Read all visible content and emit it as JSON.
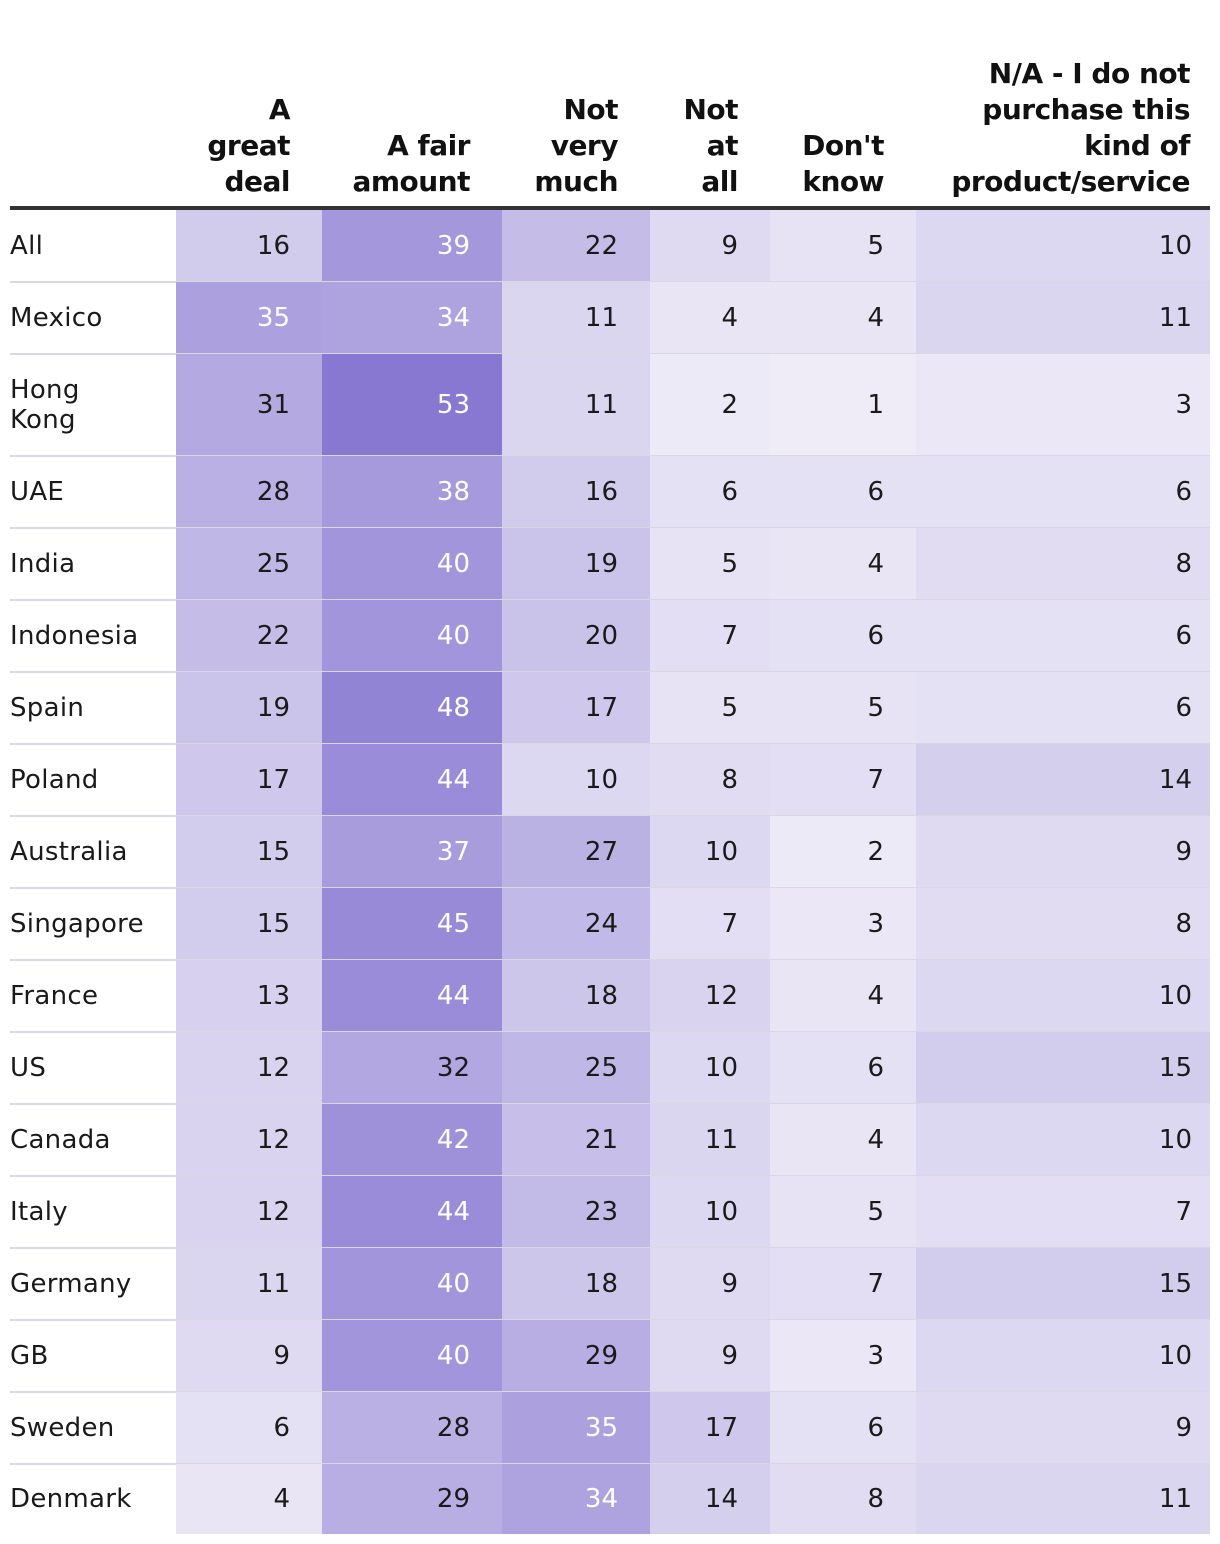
{
  "chart_data": {
    "type": "heatmap",
    "columns": [
      "A great deal",
      "A fair amount",
      "Not very much",
      "Not at all",
      "Don't know",
      "N/A - I do not purchase this kind of product/service"
    ],
    "column_header_lines": [
      [
        "A",
        "great",
        "deal"
      ],
      [
        "A fair",
        "amount"
      ],
      [
        "Not",
        "very",
        "much"
      ],
      [
        "Not",
        "at",
        "all"
      ],
      [
        "Don't",
        "know"
      ],
      [
        "N/A - I do not",
        "purchase this",
        "kind of",
        "product/service"
      ]
    ],
    "rows": [
      {
        "label": "All",
        "values": [
          16,
          39,
          22,
          9,
          5,
          10
        ]
      },
      {
        "label": "Mexico",
        "values": [
          35,
          34,
          11,
          4,
          4,
          11
        ]
      },
      {
        "label": "Hong Kong",
        "values": [
          31,
          53,
          11,
          2,
          1,
          3
        ]
      },
      {
        "label": "UAE",
        "values": [
          28,
          38,
          16,
          6,
          6,
          6
        ]
      },
      {
        "label": "India",
        "values": [
          25,
          40,
          19,
          5,
          4,
          8
        ]
      },
      {
        "label": "Indonesia",
        "values": [
          22,
          40,
          20,
          7,
          6,
          6
        ]
      },
      {
        "label": "Spain",
        "values": [
          19,
          48,
          17,
          5,
          5,
          6
        ]
      },
      {
        "label": "Poland",
        "values": [
          17,
          44,
          10,
          8,
          7,
          14
        ]
      },
      {
        "label": "Australia",
        "values": [
          15,
          37,
          27,
          10,
          2,
          9
        ]
      },
      {
        "label": "Singapore",
        "values": [
          15,
          45,
          24,
          7,
          3,
          8
        ]
      },
      {
        "label": "France",
        "values": [
          13,
          44,
          18,
          12,
          4,
          10
        ]
      },
      {
        "label": "US",
        "values": [
          12,
          32,
          25,
          10,
          6,
          15
        ]
      },
      {
        "label": "Canada",
        "values": [
          12,
          42,
          21,
          11,
          4,
          10
        ]
      },
      {
        "label": "Italy",
        "values": [
          12,
          44,
          23,
          10,
          5,
          7
        ]
      },
      {
        "label": "Germany",
        "values": [
          11,
          40,
          18,
          9,
          7,
          15
        ]
      },
      {
        "label": "GB",
        "values": [
          9,
          40,
          29,
          9,
          3,
          10
        ]
      },
      {
        "label": "Sweden",
        "values": [
          6,
          28,
          35,
          17,
          6,
          9
        ]
      },
      {
        "label": "Denmark",
        "values": [
          4,
          29,
          34,
          14,
          8,
          11
        ]
      }
    ],
    "color_scale": {
      "low": "#f1eef8",
      "high": "#8474d0",
      "max_value": 55,
      "light_text_threshold": 33,
      "dark_text": "#1a1a1a",
      "light_text": "#ffffff"
    }
  }
}
